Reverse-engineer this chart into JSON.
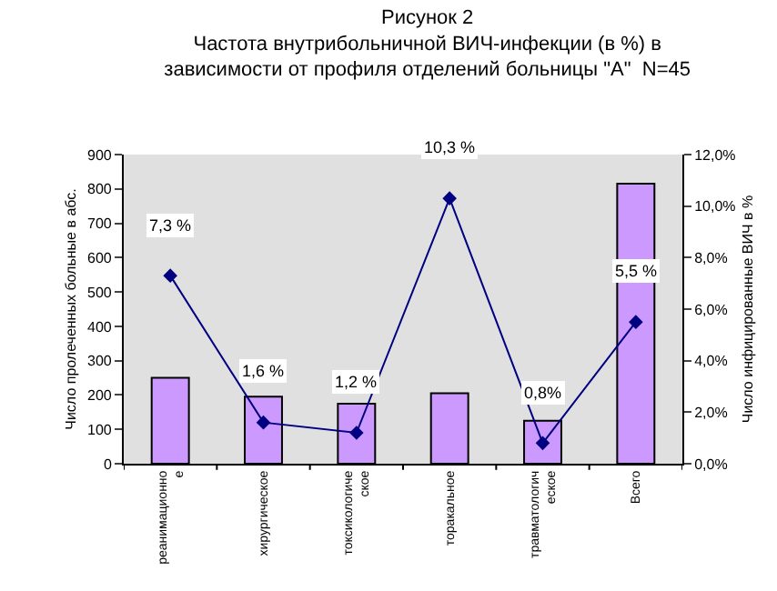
{
  "chart_data": {
    "type": "bar",
    "title": "Рисунок 2\nЧастота внутрибольничной ВИЧ-инфекции (в %) в\nзависимости от профиля отделений больницы \"А\"  N=45",
    "ylabel": "Число пролеченных больные в абс.",
    "y2label": "Число инфицированные ВИЧ в %",
    "categories": [
      "реанимационное",
      "хирургическое",
      "токсикологическое",
      "торакальное",
      "травматологическое",
      "Всего"
    ],
    "series": [
      {
        "color": "#cc99ff",
        "values": [
          250,
          195,
          175,
          205,
          125,
          815
        ]
      },
      {
        "type": "line",
        "axis": "y2",
        "color": "#000080",
        "values": [
          7.3,
          1.6,
          1.2,
          10.3,
          0.8,
          5.5
        ],
        "value_labels": [
          "7,3 %",
          "1,6 %",
          "1,2 %",
          "10,3 %",
          "0,8%",
          "5,5 %"
        ]
      }
    ],
    "ylim": [
      0,
      900
    ],
    "yticks": [
      0,
      100,
      200,
      300,
      400,
      500,
      600,
      700,
      800,
      900
    ],
    "y2lim": [
      0,
      12
    ],
    "y2ticks": [
      {
        "value": 0,
        "label": "0,0%"
      },
      {
        "value": 2,
        "label": "2,0%"
      },
      {
        "value": 4,
        "label": "4,0%"
      },
      {
        "value": 6,
        "label": "6,0%"
      },
      {
        "value": 8,
        "label": "8,0%"
      },
      {
        "value": 10,
        "label": "10,0%"
      },
      {
        "value": 12,
        "label": "12,0%"
      }
    ],
    "grid": false,
    "marker": "diamond",
    "line_style": "solid"
  }
}
